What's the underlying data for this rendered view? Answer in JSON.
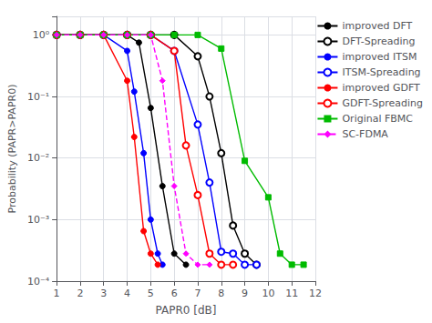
{
  "chart_data": {
    "type": "line",
    "xlabel": "PAPR0 [dB]",
    "ylabel": "Probability (PAPR>PAPR0)",
    "log": "y",
    "grid": true,
    "legend": "upper right",
    "xlim": [
      1,
      12
    ],
    "ylim": [
      0.0001,
      2
    ],
    "xticks": [
      1,
      2,
      3,
      4,
      5,
      6,
      7,
      8,
      9,
      10,
      11,
      12
    ],
    "yticks": [
      {
        "value": 0.0001,
        "label": "10⁻⁴"
      },
      {
        "value": 0.001,
        "label": "10⁻³"
      },
      {
        "value": 0.01,
        "label": "10⁻²"
      },
      {
        "value": 0.1,
        "label": "10⁻¹"
      },
      {
        "value": 1,
        "label": "10⁰"
      }
    ],
    "series": [
      {
        "name": "improved DFT",
        "color": "#000000",
        "marker": "circle",
        "line_style": "solid",
        "x": [
          1,
          2,
          3,
          4,
          4.5,
          5.0,
          5.5,
          6.0,
          6.5
        ],
        "values": [
          1,
          1,
          1,
          1,
          0.75,
          0.065,
          0.0035,
          0.00028,
          0.000185
        ]
      },
      {
        "name": "DFT-Spreading",
        "color": "#000000",
        "marker": "emptyCircle",
        "line_style": "solid",
        "x": [
          1,
          2,
          3,
          4,
          5,
          6,
          7,
          7.5,
          8.0,
          8.5,
          9.0,
          9.5
        ],
        "values": [
          1,
          1,
          1,
          1,
          1,
          1,
          0.45,
          0.1,
          0.012,
          0.0008,
          0.00028,
          0.000185
        ]
      },
      {
        "name": "improved ITSM",
        "color": "#0000ff",
        "marker": "circle",
        "line_style": "solid",
        "x": [
          1,
          2,
          3,
          4,
          4.3,
          4.7,
          5.0,
          5.3,
          5.5
        ],
        "values": [
          1,
          1,
          1,
          0.55,
          0.12,
          0.012,
          0.001,
          0.00028,
          0.000185
        ]
      },
      {
        "name": "ITSM-Spreading",
        "color": "#0000ff",
        "marker": "emptyCircle",
        "line_style": "solid",
        "x": [
          1,
          2,
          3,
          4,
          5,
          6,
          7,
          7.5,
          8.0,
          8.5,
          9.0,
          9.5
        ],
        "values": [
          1,
          1,
          1,
          1,
          1,
          0.55,
          0.035,
          0.004,
          0.0003,
          0.00028,
          0.000185,
          0.000185
        ]
      },
      {
        "name": "improved GDFT",
        "color": "#ff0000",
        "marker": "circle",
        "line_style": "solid",
        "x": [
          1,
          2,
          3,
          4,
          4.3,
          4.7,
          5.0,
          5.3
        ],
        "values": [
          1,
          1,
          1,
          0.18,
          0.022,
          0.00065,
          0.00028,
          0.000185
        ]
      },
      {
        "name": "GDFT-Spreading",
        "color": "#ff0000",
        "marker": "emptyCircle",
        "line_style": "solid",
        "x": [
          1,
          2,
          3,
          4,
          5,
          6,
          6.5,
          7.0,
          7.5,
          8.0,
          8.5
        ],
        "values": [
          1,
          1,
          1,
          1,
          1,
          0.55,
          0.016,
          0.0025,
          0.00028,
          0.000185,
          0.000185
        ]
      },
      {
        "name": "Original FBMC",
        "color": "#00bb00",
        "marker": "square",
        "line_style": "solid",
        "x": [
          1,
          2,
          3,
          4,
          5,
          6,
          7,
          8,
          9,
          10,
          10.5,
          11.0,
          11.5
        ],
        "values": [
          1,
          1,
          1,
          1,
          1,
          1,
          1,
          0.6,
          0.009,
          0.0023,
          0.00028,
          0.000185,
          0.000185
        ]
      },
      {
        "name": "SC-FDMA",
        "color": "#ff00ff",
        "marker": "diamond",
        "line_style": "dashed",
        "x": [
          1,
          2,
          3,
          4,
          5,
          5.5,
          6.0,
          6.5,
          7.0,
          7.5
        ],
        "values": [
          1,
          1,
          1,
          1,
          1,
          0.18,
          0.0035,
          0.00028,
          0.000185,
          0.000185
        ]
      }
    ]
  }
}
